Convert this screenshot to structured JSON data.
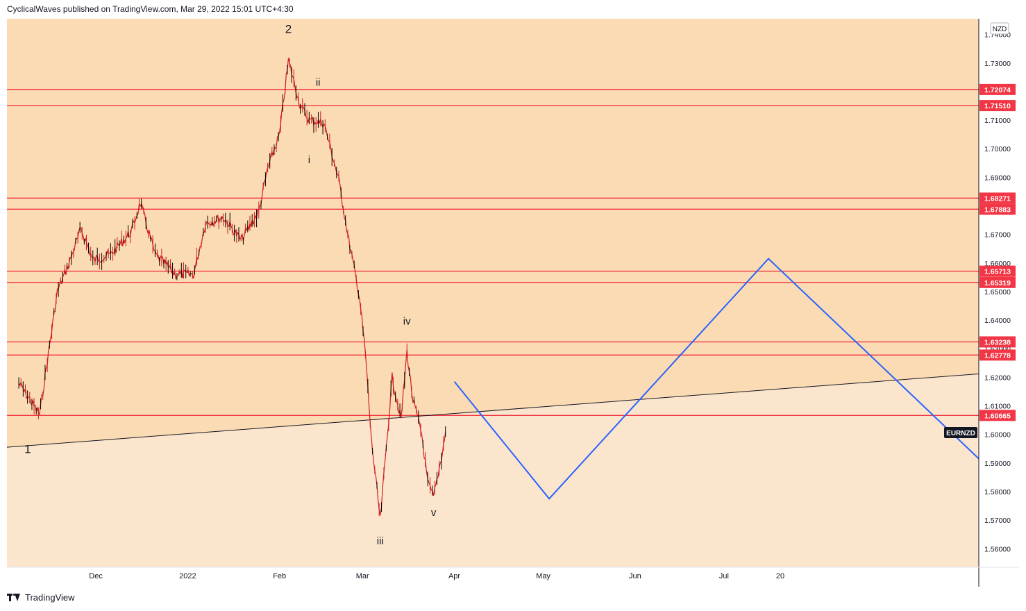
{
  "header": {
    "published_text": "CyclicalWaves published on TradingView.com, Mar 29, 2022 15:01 UTC+4:30"
  },
  "footer": {
    "brand": "TradingView"
  },
  "colors": {
    "upper_zone": "#fbdbb3",
    "lower_zone": "#fbe5cc",
    "level_line": "#f23645",
    "projection": "#2962ff",
    "trendline": "#131722",
    "candles": "#d01c1c"
  },
  "chart_data": {
    "type": "line",
    "symbol": "EURNZD",
    "currency": "NZD",
    "x_ticks": [
      "Dec",
      "2022",
      "Feb",
      "Mar",
      "Apr",
      "May",
      "Jun",
      "Jul",
      "20"
    ],
    "y_ticks": [
      "1.74000",
      "1.73000",
      "1.72000",
      "1.71000",
      "1.70000",
      "1.69000",
      "1.68000",
      "1.67000",
      "1.66000",
      "1.65000",
      "1.64000",
      "1.63000",
      "1.62000",
      "1.61000",
      "1.60000",
      "1.59000",
      "1.58000",
      "1.57000",
      "1.56000"
    ],
    "ylim": [
      1.5535,
      1.7455
    ],
    "horizontal_levels": [
      "1.72074",
      "1.71510",
      "1.68271",
      "1.67883",
      "1.65713",
      "1.65319",
      "1.63238",
      "1.62778",
      "1.60665"
    ],
    "wave_labels": [
      {
        "label": "1",
        "date": "2021-11-08",
        "price": 1.5935
      },
      {
        "label": "2",
        "date": "2022-02-04",
        "price": 1.7405
      },
      {
        "label": "ii",
        "date": "2022-02-14",
        "price": 1.722
      },
      {
        "label": "i",
        "date": "2022-02-11",
        "price": 1.695
      },
      {
        "label": "iv",
        "date": "2022-03-16",
        "price": 1.6385
      },
      {
        "label": "iii",
        "date": "2022-03-07",
        "price": 1.5615
      },
      {
        "label": "v",
        "date": "2022-03-25",
        "price": 1.5715
      }
    ],
    "price_series": [
      {
        "date": "2021-11-05",
        "price": 1.618
      },
      {
        "date": "2021-11-12",
        "price": 1.607
      },
      {
        "date": "2021-11-18",
        "price": 1.65
      },
      {
        "date": "2021-11-22",
        "price": 1.66
      },
      {
        "date": "2021-11-26",
        "price": 1.672
      },
      {
        "date": "2021-11-30",
        "price": 1.661
      },
      {
        "date": "2021-12-06",
        "price": 1.663
      },
      {
        "date": "2021-12-13",
        "price": 1.671
      },
      {
        "date": "2021-12-16",
        "price": 1.681
      },
      {
        "date": "2021-12-21",
        "price": 1.663
      },
      {
        "date": "2021-12-28",
        "price": 1.656
      },
      {
        "date": "2022-01-03",
        "price": 1.656
      },
      {
        "date": "2022-01-07",
        "price": 1.674
      },
      {
        "date": "2022-01-13",
        "price": 1.676
      },
      {
        "date": "2022-01-19",
        "price": 1.668
      },
      {
        "date": "2022-01-25",
        "price": 1.678
      },
      {
        "date": "2022-01-28",
        "price": 1.693
      },
      {
        "date": "2022-02-01",
        "price": 1.705
      },
      {
        "date": "2022-02-04",
        "price": 1.731
      },
      {
        "date": "2022-02-08",
        "price": 1.715
      },
      {
        "date": "2022-02-11",
        "price": 1.71
      },
      {
        "date": "2022-02-16",
        "price": 1.709
      },
      {
        "date": "2022-02-21",
        "price": 1.689
      },
      {
        "date": "2022-02-24",
        "price": 1.67
      },
      {
        "date": "2022-02-28",
        "price": 1.648
      },
      {
        "date": "2022-03-02",
        "price": 1.628
      },
      {
        "date": "2022-03-04",
        "price": 1.598
      },
      {
        "date": "2022-03-07",
        "price": 1.57
      },
      {
        "date": "2022-03-09",
        "price": 1.595
      },
      {
        "date": "2022-03-11",
        "price": 1.62
      },
      {
        "date": "2022-03-14",
        "price": 1.605
      },
      {
        "date": "2022-03-16",
        "price": 1.629
      },
      {
        "date": "2022-03-18",
        "price": 1.612
      },
      {
        "date": "2022-03-21",
        "price": 1.6
      },
      {
        "date": "2022-03-23",
        "price": 1.583
      },
      {
        "date": "2022-03-25",
        "price": 1.578
      },
      {
        "date": "2022-03-28",
        "price": 1.594
      },
      {
        "date": "2022-03-29",
        "price": 1.601
      }
    ],
    "projection_path": [
      {
        "date": "2022-04-01",
        "price": 1.6185
      },
      {
        "date": "2022-05-03",
        "price": 1.5775
      },
      {
        "date": "2022-07-16",
        "price": 1.6615
      },
      {
        "date": "2022-09-25",
        "price": 1.5915
      }
    ],
    "trendline": [
      {
        "date": "2021-11-01",
        "price": 1.5955
      },
      {
        "date": "2022-09-25",
        "price": 1.6212
      }
    ],
    "x_range": [
      "2021-11-01",
      "2022-09-25"
    ]
  }
}
